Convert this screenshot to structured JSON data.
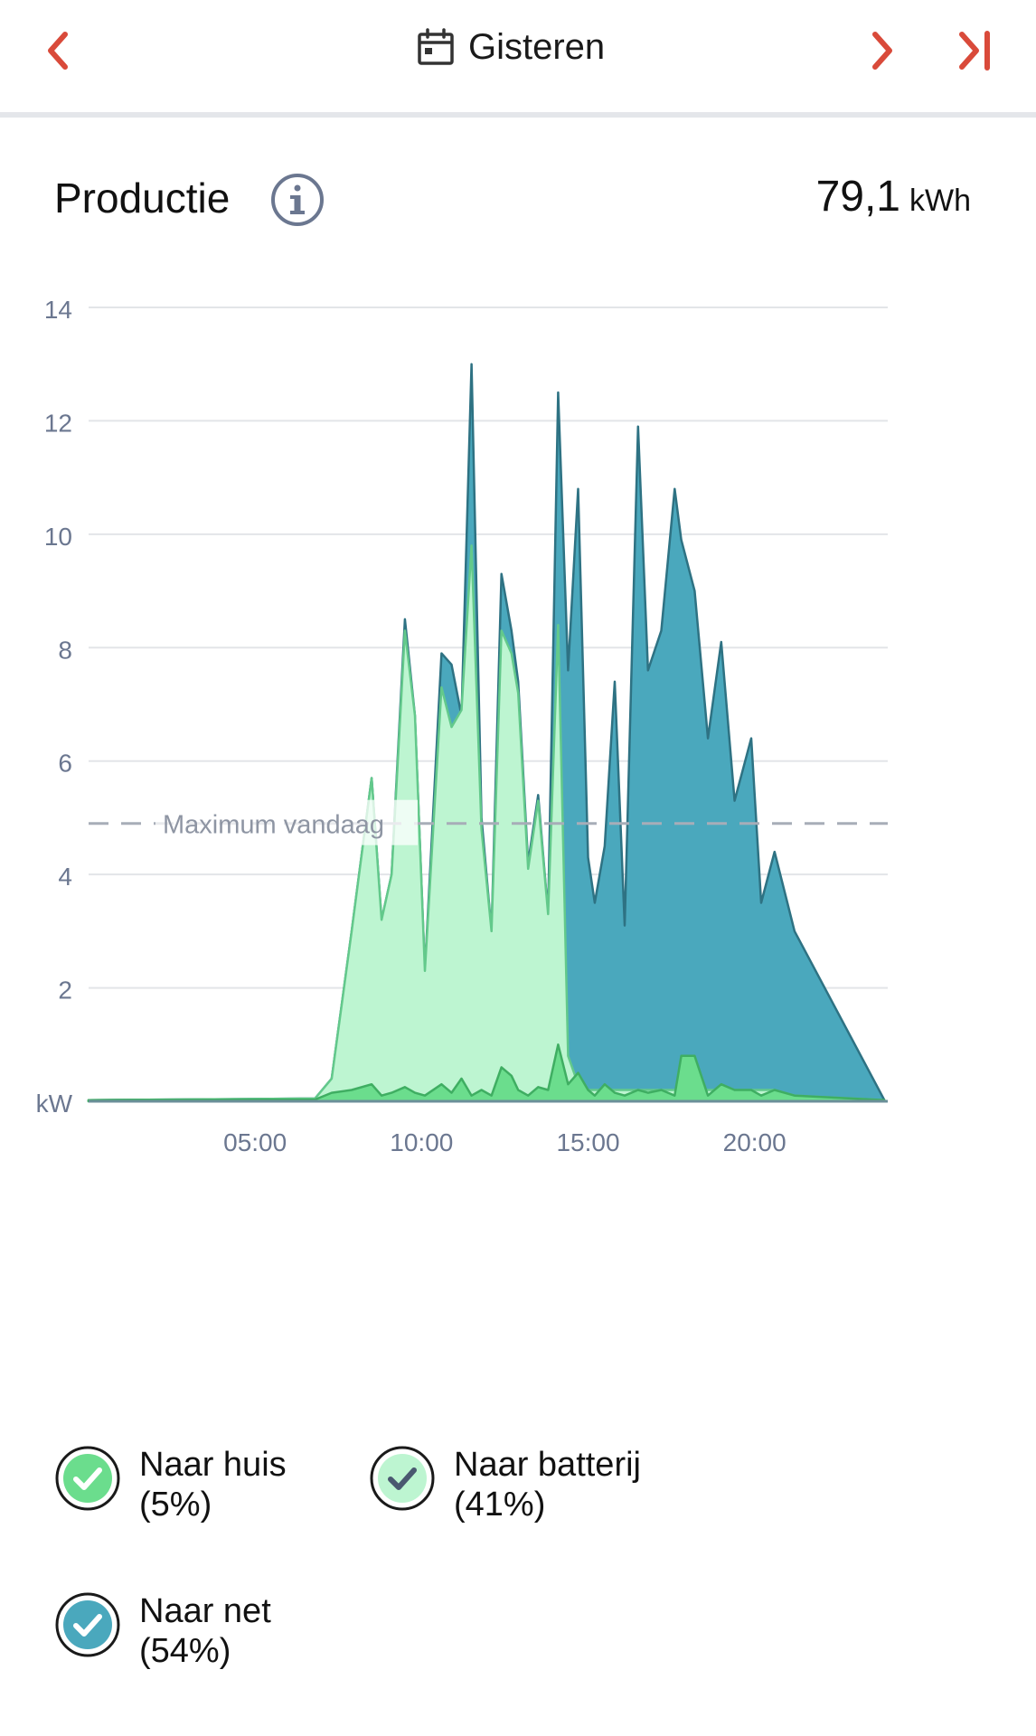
{
  "header": {
    "date_label": "Gisteren",
    "accent_color": "#d94a3a"
  },
  "section": {
    "title": "Productie",
    "total_value": "79,1",
    "total_unit": "kWh"
  },
  "chart_data": {
    "type": "area",
    "ylabel": "kW",
    "ylim": [
      0,
      14
    ],
    "yticks": [
      "14",
      "12",
      "10",
      "8",
      "6",
      "4",
      "2"
    ],
    "x_ticks": [
      "05:00",
      "10:00",
      "15:00",
      "20:00"
    ],
    "max_line": {
      "label": "Maximum vandaag",
      "value": 4.9
    },
    "x_hours": [
      0,
      6.8,
      7.3,
      7.9,
      8.5,
      8.8,
      9.1,
      9.5,
      9.8,
      10.1,
      10.6,
      10.9,
      11.2,
      11.5,
      11.8,
      12.1,
      12.4,
      12.7,
      12.9,
      13.2,
      13.5,
      13.8,
      14.1,
      14.4,
      14.7,
      15.0,
      15.2,
      15.5,
      15.8,
      16.1,
      16.5,
      16.8,
      17.2,
      17.6,
      17.8,
      18.2,
      18.6,
      19.0,
      19.4,
      19.9,
      20.2,
      20.6,
      21.2,
      23.9
    ],
    "series": [
      {
        "name": "Naar net",
        "color": "#4aa8bd",
        "stroke": "#2e7283",
        "values": [
          0.02,
          0.05,
          0.4,
          3.0,
          5.7,
          3.2,
          4.0,
          8.5,
          6.8,
          2.3,
          7.9,
          7.7,
          6.8,
          13.0,
          5.0,
          3.0,
          9.3,
          8.3,
          7.4,
          4.2,
          5.4,
          3.3,
          12.5,
          7.6,
          10.8,
          4.3,
          3.5,
          4.5,
          7.4,
          3.1,
          11.9,
          7.6,
          8.3,
          10.8,
          9.9,
          9.0,
          6.4,
          8.1,
          5.3,
          6.4,
          3.5,
          4.4,
          3.0,
          0.02
        ]
      },
      {
        "name": "Naar batterij",
        "color": "#bdf5d1",
        "stroke": "#63c98b",
        "values": [
          0.02,
          0.05,
          0.4,
          3.0,
          5.7,
          3.2,
          4.0,
          8.3,
          6.8,
          2.3,
          7.3,
          6.6,
          6.9,
          9.8,
          4.8,
          3.0,
          8.3,
          7.9,
          7.2,
          4.1,
          5.3,
          3.3,
          8.4,
          0.8,
          0.3,
          0.2,
          0.2,
          0.2,
          0.2,
          0.2,
          0.2,
          0.2,
          0.2,
          0.2,
          0.2,
          0.2,
          0.2,
          0.2,
          0.2,
          0.2,
          0.2,
          0.2,
          0.1,
          0.02
        ]
      },
      {
        "name": "Naar huis",
        "color": "#6bdd8d",
        "stroke": "#3fae62",
        "values": [
          0.02,
          0.03,
          0.15,
          0.2,
          0.3,
          0.1,
          0.15,
          0.25,
          0.15,
          0.1,
          0.3,
          0.15,
          0.4,
          0.1,
          0.2,
          0.1,
          0.6,
          0.45,
          0.2,
          0.1,
          0.25,
          0.2,
          1.0,
          0.3,
          0.5,
          0.2,
          0.1,
          0.3,
          0.15,
          0.1,
          0.2,
          0.15,
          0.2,
          0.1,
          0.8,
          0.8,
          0.1,
          0.3,
          0.2,
          0.2,
          0.1,
          0.2,
          0.1,
          0.02
        ]
      }
    ]
  },
  "legend": [
    {
      "label": "Naar huis",
      "pct": "(5%)",
      "fill": "#6bdd8d"
    },
    {
      "label": "Naar batterij",
      "pct": "(41%)",
      "fill": "#bdf5d1"
    },
    {
      "label": "Naar net",
      "pct": "(54%)",
      "fill": "#4aa8bd"
    }
  ]
}
